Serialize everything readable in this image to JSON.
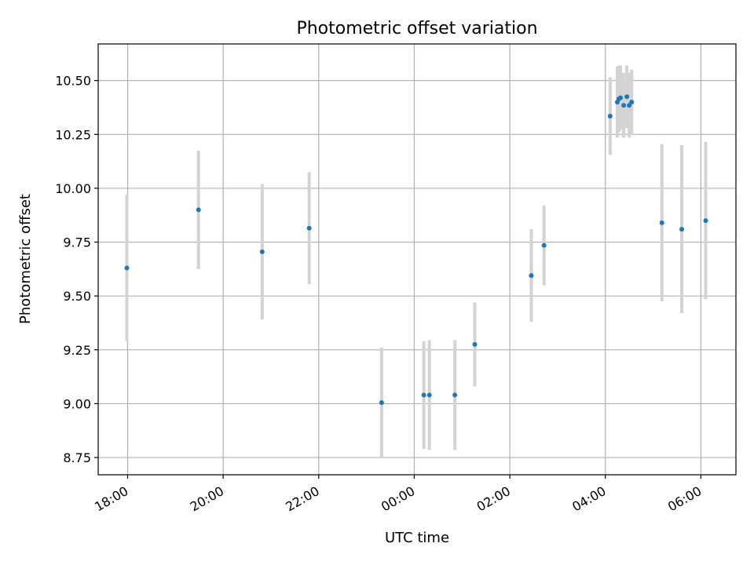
{
  "chart_data": {
    "type": "scatter",
    "title": "Photometric offset variation",
    "xlabel": "UTC time",
    "ylabel": "Photometric offset",
    "x_ticks": [
      "18:00",
      "20:00",
      "22:00",
      "00:00",
      "02:00",
      "04:00",
      "06:00"
    ],
    "y_ticks": [
      "8.75",
      "9.00",
      "9.25",
      "9.50",
      "9.75",
      "10.00",
      "10.25",
      "10.50"
    ],
    "x_unit": "hours from 18:00 UTC",
    "xlim": [
      "17:23",
      "06:44"
    ],
    "ylim": [
      8.67,
      10.67
    ],
    "grid": true,
    "colors": {
      "marker": "#1f77b4",
      "errorbar": "#d3d3d3",
      "grid": "#b0b0b0"
    },
    "points": [
      {
        "time": "17:59",
        "value": 9.63,
        "err": 0.34
      },
      {
        "time": "19:29",
        "value": 9.9,
        "err": 0.275
      },
      {
        "time": "20:49",
        "value": 9.705,
        "err": 0.315
      },
      {
        "time": "21:48",
        "value": 9.815,
        "err": 0.26
      },
      {
        "time": "23:19",
        "value": 9.005,
        "err": 0.255
      },
      {
        "time": "00:12",
        "value": 9.04,
        "err": 0.25
      },
      {
        "time": "00:19",
        "value": 9.04,
        "err": 0.255
      },
      {
        "time": "00:51",
        "value": 9.04,
        "err": 0.255
      },
      {
        "time": "01:16",
        "value": 9.275,
        "err": 0.195
      },
      {
        "time": "02:27",
        "value": 9.595,
        "err": 0.215
      },
      {
        "time": "02:43",
        "value": 9.735,
        "err": 0.185
      },
      {
        "time": "04:06",
        "value": 10.335,
        "err": 0.18
      },
      {
        "time": "04:15",
        "value": 10.4,
        "err": 0.165
      },
      {
        "time": "04:17",
        "value": 10.415,
        "err": 0.155
      },
      {
        "time": "04:19",
        "value": 10.42,
        "err": 0.15
      },
      {
        "time": "04:23",
        "value": 10.385,
        "err": 0.15
      },
      {
        "time": "04:27",
        "value": 10.425,
        "err": 0.145
      },
      {
        "time": "04:30",
        "value": 10.385,
        "err": 0.15
      },
      {
        "time": "04:33",
        "value": 10.4,
        "err": 0.15
      },
      {
        "time": "05:11",
        "value": 9.84,
        "err": 0.365
      },
      {
        "time": "05:36",
        "value": 9.81,
        "err": 0.39
      },
      {
        "time": "06:06",
        "value": 9.85,
        "err": 0.365
      }
    ]
  }
}
